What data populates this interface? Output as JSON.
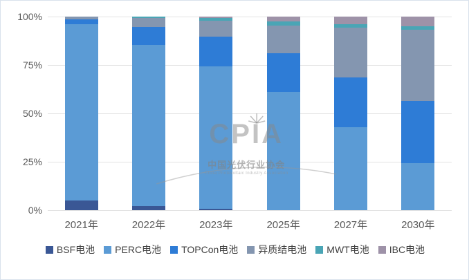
{
  "chart_data": {
    "type": "bar",
    "stacked": true,
    "title": "",
    "xlabel": "",
    "ylabel": "",
    "ylim": [
      0,
      100
    ],
    "y_ticks": [
      "100%",
      "75%",
      "50%",
      "25%",
      "0%"
    ],
    "grid": true,
    "legend_position": "bottom",
    "categories": [
      "2021年",
      "2022年",
      "2023年",
      "2025年",
      "2027年",
      "2030年"
    ],
    "series": [
      {
        "name": "BSF电池",
        "color": "#3A5795",
        "values": [
          5,
          2,
          0.8,
          0,
          0,
          0
        ]
      },
      {
        "name": "PERC电池",
        "color": "#5B9BD5",
        "values": [
          91,
          83.5,
          73.5,
          61,
          43,
          24.3
        ]
      },
      {
        "name": "TOPCon电池",
        "color": "#2E7CD6",
        "values": [
          2.5,
          9,
          15.5,
          20,
          25.5,
          32
        ]
      },
      {
        "name": "异质结电池",
        "color": "#8496B0",
        "values": [
          1.5,
          4.8,
          8,
          14.5,
          25.7,
          36.9
        ]
      },
      {
        "name": "MWT电池",
        "color": "#4AA5B5",
        "values": [
          0,
          0.7,
          1.5,
          2,
          1.8,
          1.8
        ]
      },
      {
        "name": "IBC电池",
        "color": "#9E92A8",
        "values": [
          0,
          0,
          0.7,
          2.5,
          4,
          5
        ]
      }
    ]
  },
  "watermark": {
    "logo": "CPIA",
    "org_cn": "中国光伏行业协会",
    "org_en": "China Photovoltaic Industry Association"
  }
}
